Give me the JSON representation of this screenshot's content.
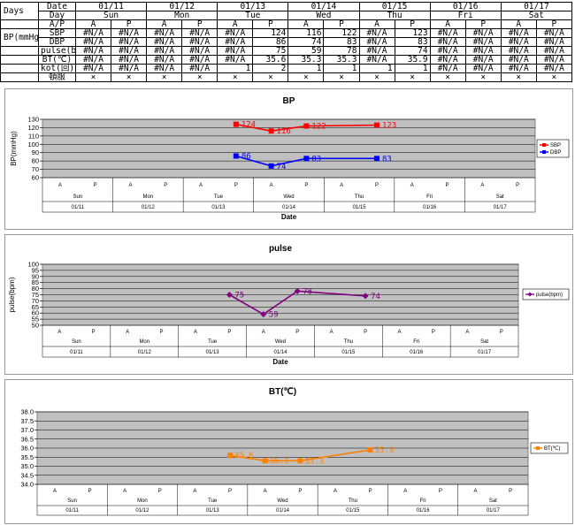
{
  "table": {
    "days_label": "Days",
    "header_date_label": "Date",
    "header_day_label": "Day",
    "header_ap_label": "A/P",
    "bp_group_label": "BP(mmHg)",
    "dates": [
      "01/11",
      "01/12",
      "01/13",
      "01/14",
      "01/15",
      "01/16",
      "01/17"
    ],
    "days": [
      "Sun",
      "Mon",
      "Tue",
      "Wed",
      "Thu",
      "Fri",
      "Sat"
    ],
    "ap": [
      "A",
      "P"
    ],
    "rows": [
      {
        "label": "SBP",
        "values": [
          "#N/A",
          "#N/A",
          "#N/A",
          "#N/A",
          "#N/A",
          "124",
          "116",
          "122",
          "#N/A",
          "123",
          "#N/A",
          "#N/A",
          "#N/A",
          "#N/A"
        ]
      },
      {
        "label": "DBP",
        "values": [
          "#N/A",
          "#N/A",
          "#N/A",
          "#N/A",
          "#N/A",
          "86",
          "74",
          "83",
          "#N/A",
          "83",
          "#N/A",
          "#N/A",
          "#N/A",
          "#N/A"
        ]
      },
      {
        "label": "pulse(bpm)",
        "values": [
          "#N/A",
          "#N/A",
          "#N/A",
          "#N/A",
          "#N/A",
          "75",
          "59",
          "78",
          "#N/A",
          "74",
          "#N/A",
          "#N/A",
          "#N/A",
          "#N/A"
        ]
      },
      {
        "label": "BT(℃)",
        "values": [
          "#N/A",
          "#N/A",
          "#N/A",
          "#N/A",
          "#N/A",
          "35.6",
          "35.3",
          "35.3",
          "#N/A",
          "35.9",
          "#N/A",
          "#N/A",
          "#N/A",
          "#N/A"
        ]
      },
      {
        "label": "kot(回)",
        "values": [
          "#N/A",
          "#N/A",
          "#N/A",
          "#N/A",
          "1",
          "2",
          "1",
          "1",
          "1",
          "1",
          "#N/A",
          "#N/A",
          "#N/A",
          "#N/A"
        ]
      },
      {
        "label": "頓服",
        "values": [
          "×",
          "×",
          "×",
          "×",
          "×",
          "×",
          "×",
          "×",
          "×",
          "×",
          "×",
          "×",
          "×",
          "×"
        ]
      }
    ]
  },
  "chart_data": [
    {
      "type": "line",
      "title": "BP",
      "xlabel": "Date",
      "ylabel": "BP(mmHg)",
      "ylim": [
        60,
        130
      ],
      "ystep": 10,
      "yticks": [
        "60",
        "70",
        "80",
        "90",
        "100",
        "110",
        "120",
        "130"
      ],
      "categories_ap": [
        "A",
        "P"
      ],
      "categories_day": [
        "Sun",
        "Mon",
        "Tue",
        "Wed",
        "Thu",
        "Fri",
        "Sat"
      ],
      "categories_date": [
        "01/11",
        "01/12",
        "01/13",
        "01/14",
        "01/15",
        "01/16",
        "01/17"
      ],
      "legend_position": "right",
      "grid": true,
      "series": [
        {
          "name": "SBP",
          "color": "#ff0000",
          "marker": "square",
          "values": [
            null,
            null,
            null,
            null,
            null,
            124,
            116,
            122,
            null,
            123,
            null,
            null,
            null,
            null
          ]
        },
        {
          "name": "DBP",
          "color": "#0000ff",
          "marker": "square",
          "values": [
            null,
            null,
            null,
            null,
            null,
            86,
            74,
            83,
            null,
            83,
            null,
            null,
            null,
            null
          ]
        }
      ]
    },
    {
      "type": "line",
      "title": "pulse",
      "xlabel": "Date",
      "ylabel": "pulse(bpm)",
      "ylim": [
        50,
        100
      ],
      "ystep": 5,
      "yticks": [
        "50",
        "55",
        "60",
        "65",
        "70",
        "75",
        "80",
        "85",
        "90",
        "95",
        "100"
      ],
      "categories_ap": [
        "A",
        "P"
      ],
      "categories_day": [
        "Sun",
        "Mon",
        "Tue",
        "Wed",
        "Thu",
        "Fri",
        "Sat"
      ],
      "categories_date": [
        "01/11",
        "01/12",
        "01/13",
        "01/14",
        "01/15",
        "01/16",
        "01/17"
      ],
      "legend_position": "right",
      "grid": true,
      "series": [
        {
          "name": "pulse(bpm)",
          "color": "#800080",
          "marker": "diamond",
          "values": [
            null,
            null,
            null,
            null,
            null,
            75,
            59,
            78,
            null,
            74,
            null,
            null,
            null,
            null
          ]
        }
      ]
    },
    {
      "type": "line",
      "title": "BT(℃)",
      "xlabel": "",
      "ylabel": "",
      "ylim": [
        34.0,
        38.0
      ],
      "ystep": 0.5,
      "yticks": [
        "34.0",
        "34.5",
        "35.0",
        "35.5",
        "36.0",
        "36.5",
        "37.0",
        "37.5",
        "38.0"
      ],
      "categories_ap": [
        "A",
        "P"
      ],
      "categories_day": [
        "Sun",
        "Mon",
        "Tue",
        "Wed",
        "Thu",
        "Fri",
        "Sat"
      ],
      "categories_date": [
        "01/11",
        "01/12",
        "01/13",
        "01/14",
        "01/15",
        "01/16",
        "01/17"
      ],
      "legend_position": "right",
      "grid": true,
      "series": [
        {
          "name": "BT(℃)",
          "color": "#ff8000",
          "marker": "square",
          "values": [
            null,
            null,
            null,
            null,
            null,
            35.6,
            35.3,
            35.3,
            null,
            35.9,
            null,
            null,
            null,
            null
          ]
        }
      ]
    }
  ]
}
